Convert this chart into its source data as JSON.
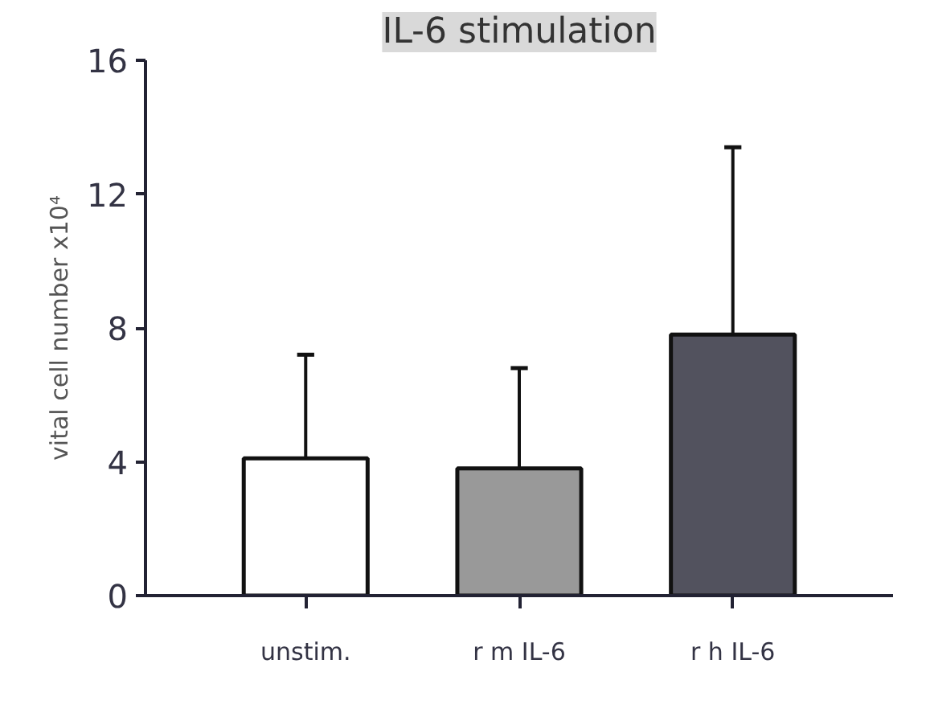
{
  "chart_data": {
    "type": "bar",
    "title": "IL-6 stimulation",
    "ylabel": "vital cell number x10⁴",
    "categories": [
      "unstim.",
      "r m IL-6",
      "r h IL-6"
    ],
    "values": [
      4.1,
      3.8,
      7.8
    ],
    "colors": [
      "#ffffff",
      "#999999",
      "#52525e"
    ],
    "errors": [
      [
        4.1,
        7.2
      ],
      [
        3.8,
        6.8
      ],
      [
        7.8,
        13.4
      ]
    ],
    "ylim": [
      0,
      16
    ],
    "yticks": [
      0,
      4,
      8,
      12,
      16
    ],
    "grid": false
  }
}
